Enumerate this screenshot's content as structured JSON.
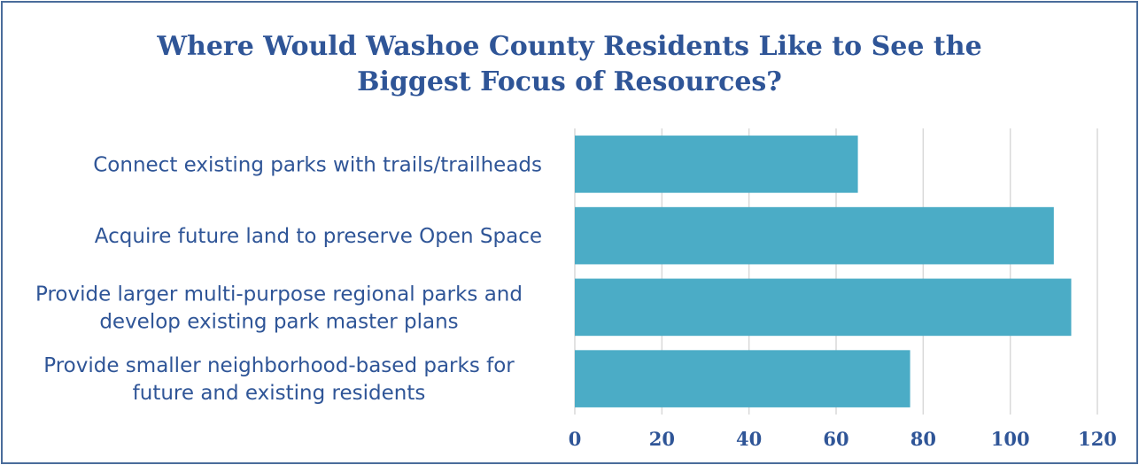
{
  "chart_data": {
    "type": "bar",
    "orientation": "horizontal",
    "title_lines": [
      "Where Would Washoe County Residents Like to See the",
      "Biggest Focus of Resources?"
    ],
    "categories": [
      [
        "Connect existing parks with trails/trailheads"
      ],
      [
        "Acquire future land to preserve Open Space"
      ],
      [
        "Provide larger multi-purpose regional parks and",
        "develop existing park master plans"
      ],
      [
        "Provide smaller neighborhood-based parks for",
        "future and existing residents"
      ]
    ],
    "values": [
      65,
      110,
      114,
      77
    ],
    "xlim": [
      0,
      120
    ],
    "xticks": [
      0,
      20,
      40,
      60,
      80,
      100,
      120
    ],
    "grid": true,
    "bar_color": "#4bacc6",
    "grid_color": "#d9d9d9",
    "text_color": "#2f5597"
  }
}
